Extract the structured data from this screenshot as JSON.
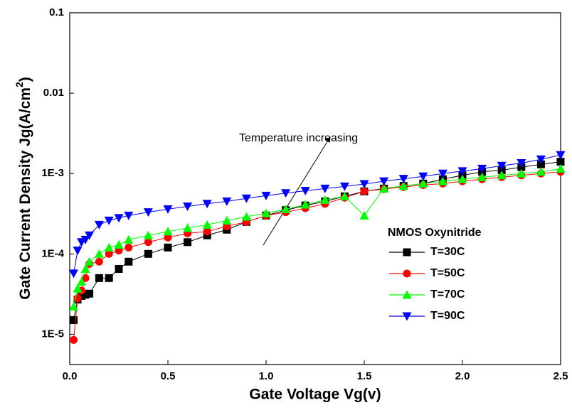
{
  "chart_data": {
    "type": "scatter",
    "xlabel": "Gate Voltage Vg(v)",
    "ylabel": {
      "text": "Gate Current Density Jg(A/cm",
      "superscript": "2",
      "suffix": ")"
    },
    "annotation": "Temperature increasing",
    "legend_title": "NMOS Oxynitride",
    "legend": "lower right",
    "yscale": "log",
    "xlim": [
      0,
      2.5
    ],
    "ylim": [
      4.2e-06,
      0.1
    ],
    "xticks": [
      {
        "value": 0,
        "label": "0.0"
      },
      0.5,
      {
        "value": 1,
        "label": "1.0"
      },
      1.5,
      {
        "value": 2,
        "label": "2.0"
      },
      2.5
    ],
    "yticks": [
      {
        "value": 1e-05,
        "label": "1E-5"
      },
      {
        "value": 0.0001,
        "label": "1E-4"
      },
      {
        "value": 0.001,
        "label": "1E-3"
      },
      0.01,
      0.1
    ],
    "x": [
      0.02,
      0.04,
      0.06,
      0.08,
      0.1,
      0.15,
      0.2,
      0.25,
      0.3,
      0.4,
      0.5,
      0.6,
      0.7,
      0.8,
      0.9,
      1.0,
      1.1,
      1.2,
      1.3,
      1.4,
      1.5,
      1.6,
      1.7,
      1.8,
      1.9,
      2.0,
      2.1,
      2.2,
      2.3,
      2.4,
      2.5
    ],
    "series": [
      {
        "name": "T=30C",
        "color": "#000000",
        "marker": "square",
        "values": [
          1.5e-05,
          2.7e-05,
          3e-05,
          3.1e-05,
          3.2e-05,
          5e-05,
          5e-05,
          6.5e-05,
          8e-05,
          0.0001,
          0.00012,
          0.00014,
          0.00017,
          0.0002,
          0.00025,
          0.0003,
          0.00035,
          0.0004,
          0.00045,
          0.00052,
          0.0006,
          0.00065,
          0.0007,
          0.00075,
          0.00085,
          0.00095,
          0.00105,
          0.0011,
          0.0012,
          0.0013,
          0.0014
        ]
      },
      {
        "name": "T=50C",
        "color": "#ff0000",
        "marker": "circle",
        "values": [
          8.5e-06,
          2.8e-05,
          3.5e-05,
          5e-05,
          7.5e-05,
          8e-05,
          0.0001,
          0.00011,
          0.00012,
          0.00014,
          0.00016,
          0.00018,
          0.00019,
          0.00022,
          0.00025,
          0.0003,
          0.00033,
          0.00037,
          0.00042,
          0.0005,
          0.0006,
          0.00064,
          0.00068,
          0.00072,
          0.00075,
          0.0008,
          0.00085,
          0.0009,
          0.00095,
          0.001,
          0.00105
        ]
      },
      {
        "name": "T=70C",
        "color": "#00ff00",
        "marker": "triangle-up",
        "values": [
          2.2e-05,
          3.7e-05,
          4.5e-05,
          6.5e-05,
          8e-05,
          0.0001,
          0.00012,
          0.00013,
          0.00015,
          0.00017,
          0.00019,
          0.00021,
          0.00023,
          0.00026,
          0.00029,
          0.00032,
          0.00036,
          0.00041,
          0.00047,
          0.00052,
          0.0003,
          0.00065,
          0.0007,
          0.00075,
          0.0008,
          0.00085,
          0.0009,
          0.00095,
          0.001,
          0.00105,
          0.00115
        ]
      },
      {
        "name": "T=90C",
        "color": "#0000ff",
        "marker": "triangle-down",
        "values": [
          5.7e-05,
          0.00011,
          0.00014,
          0.00015,
          0.00017,
          0.00023,
          0.00026,
          0.00028,
          0.0003,
          0.00033,
          0.00036,
          0.00039,
          0.00042,
          0.00045,
          0.00049,
          0.00053,
          0.00057,
          0.00061,
          0.00065,
          0.00069,
          0.00074,
          0.0008,
          0.00086,
          0.00092,
          0.001,
          0.00107,
          0.00115,
          0.00125,
          0.00135,
          0.0015,
          0.0017
        ]
      }
    ]
  }
}
